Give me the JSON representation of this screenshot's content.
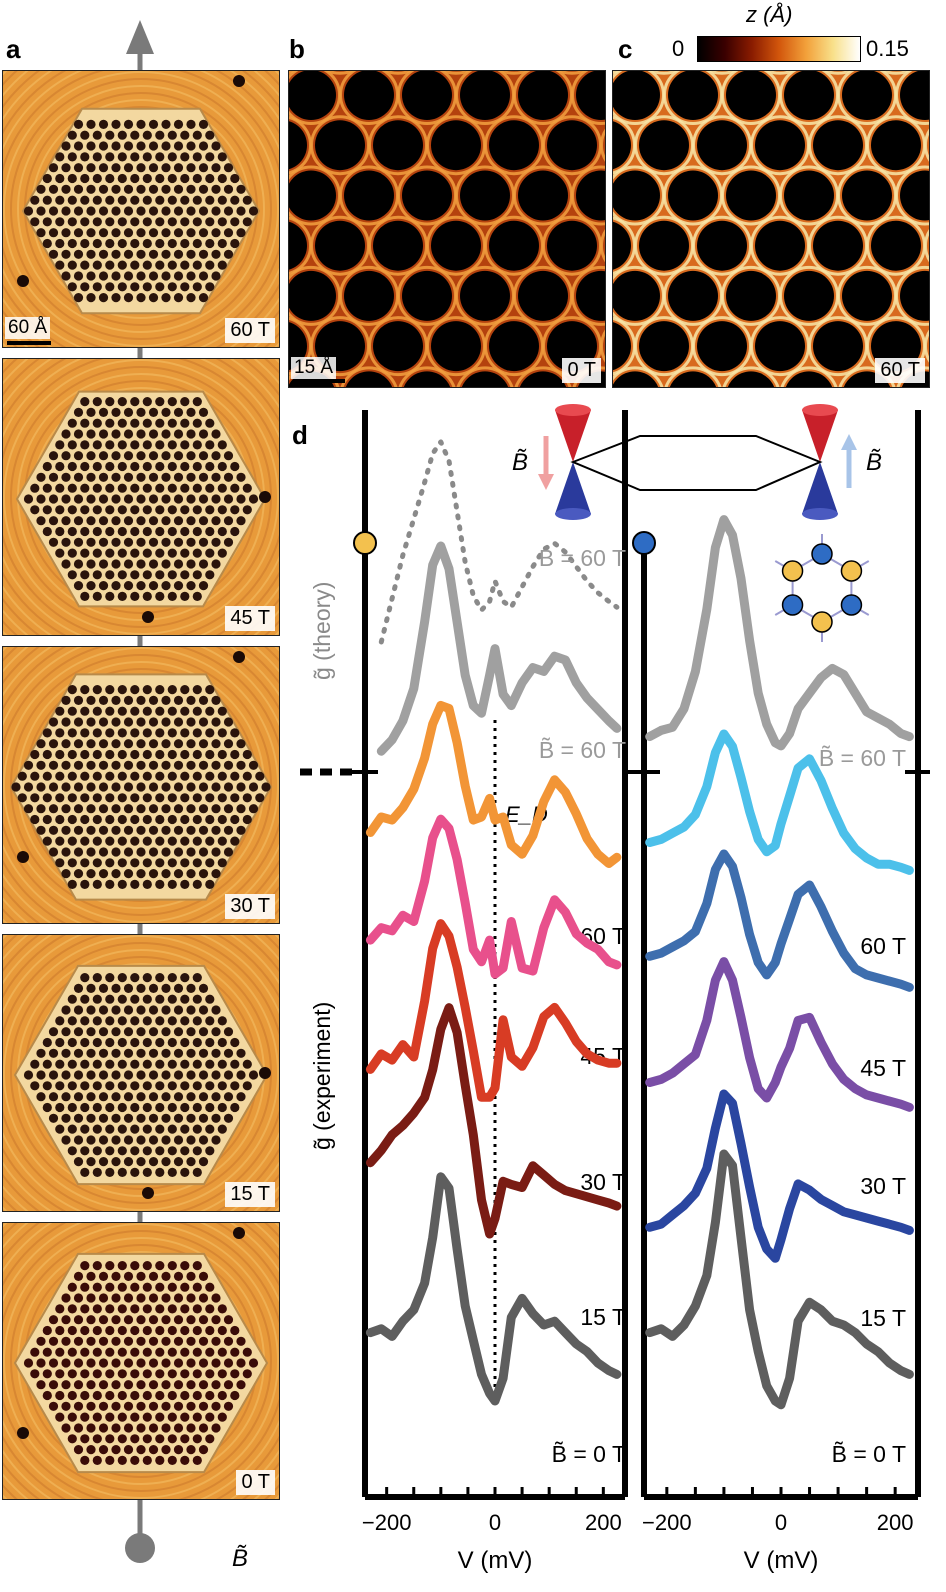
{
  "panels": {
    "a": {
      "letter": "a",
      "scalebar": "60 Å",
      "frames": [
        "60 T",
        "45 T",
        "30 T",
        "15 T",
        "0 T"
      ],
      "axis_label": "B̃"
    },
    "b": {
      "letter": "b",
      "scalebar": "15 Å",
      "tag": "0 T"
    },
    "c": {
      "letter": "c",
      "tag": "60 T"
    },
    "d": {
      "letter": "d"
    }
  },
  "colorbar": {
    "title": "z (Å)",
    "min_label": "0",
    "max_label": "0.15",
    "colors": [
      "#000000",
      "#3a0000",
      "#8a1c00",
      "#d2560c",
      "#f2a03a",
      "#f8e08a",
      "#ffffff"
    ]
  },
  "schematic": {
    "left_label": "B̃",
    "right_label": "B̃"
  },
  "chart_data": [
    {
      "type": "line",
      "panel": "d-left",
      "xlabel": "V (mV)",
      "ylabel_theory": "g̃ (theory)",
      "ylabel_experiment": "g̃ (experiment)",
      "xlim": [
        -240,
        240
      ],
      "xticks": [
        -200,
        0,
        200
      ],
      "xtick_labels": [
        "−200",
        "0",
        "200"
      ],
      "dirac_label": "E_D",
      "series": [
        {
          "name": "B = 60 T",
          "color": "#8a8a8a",
          "dashed": true,
          "x": [
            -210,
            -190,
            -170,
            -150,
            -130,
            -115,
            -100,
            -85,
            -70,
            -55,
            -40,
            -25,
            -10,
            0,
            15,
            30,
            50,
            70,
            90,
            110,
            130,
            150,
            170,
            190,
            210,
            225
          ],
          "y": [
            40,
            70,
            100,
            125,
            150,
            170,
            178,
            165,
            130,
            95,
            72,
            62,
            68,
            82,
            68,
            64,
            78,
            92,
            104,
            108,
            102,
            92,
            82,
            74,
            68,
            64
          ]
        },
        {
          "name": "B̃ = 60 T",
          "color": "#a0a0a0",
          "dashed": false,
          "x": [
            -210,
            -190,
            -170,
            -150,
            -130,
            -115,
            -100,
            -85,
            -70,
            -55,
            -40,
            -25,
            -10,
            0,
            15,
            30,
            50,
            70,
            90,
            110,
            130,
            150,
            170,
            190,
            210,
            225
          ],
          "y": [
            12,
            18,
            28,
            45,
            80,
            110,
            120,
            108,
            80,
            52,
            36,
            32,
            52,
            66,
            42,
            36,
            48,
            56,
            54,
            62,
            60,
            48,
            40,
            34,
            28,
            24
          ]
        },
        {
          "name": "60 T",
          "color": "#f29536",
          "dashed": false,
          "x": [
            -230,
            -210,
            -190,
            -170,
            -150,
            -130,
            -115,
            -100,
            -85,
            -70,
            -55,
            -40,
            -25,
            -10,
            0,
            15,
            30,
            50,
            70,
            90,
            110,
            130,
            150,
            170,
            190,
            210,
            225
          ],
          "y": [
            50,
            60,
            58,
            66,
            78,
            98,
            120,
            132,
            130,
            108,
            80,
            58,
            60,
            72,
            58,
            60,
            42,
            36,
            48,
            70,
            84,
            76,
            62,
            46,
            36,
            30,
            34
          ]
        },
        {
          "name": "45 T",
          "color": "#e8508c",
          "dashed": false,
          "x": [
            -230,
            -210,
            -190,
            -170,
            -150,
            -130,
            -115,
            -100,
            -85,
            -70,
            -55,
            -40,
            -25,
            -10,
            0,
            15,
            30,
            50,
            70,
            90,
            110,
            130,
            150,
            170,
            190,
            210,
            225
          ],
          "y": [
            58,
            66,
            64,
            74,
            70,
            96,
            124,
            136,
            130,
            110,
            82,
            52,
            44,
            58,
            36,
            40,
            70,
            40,
            38,
            66,
            84,
            76,
            62,
            56,
            52,
            44,
            42
          ]
        },
        {
          "name": "30 T",
          "color": "#d83c24",
          "dashed": false,
          "x": [
            -230,
            -210,
            -190,
            -170,
            -150,
            -130,
            -115,
            -100,
            -85,
            -70,
            -55,
            -40,
            -25,
            -10,
            0,
            15,
            30,
            50,
            70,
            90,
            110,
            130,
            150,
            170,
            190,
            210,
            225
          ],
          "y": [
            52,
            62,
            58,
            68,
            60,
            96,
            130,
            146,
            138,
            118,
            92,
            64,
            34,
            34,
            40,
            84,
            60,
            54,
            66,
            86,
            92,
            82,
            70,
            62,
            58,
            56,
            56
          ]
        },
        {
          "name": "15 T",
          "color": "#7a1c14",
          "dashed": false,
          "x": [
            -230,
            -210,
            -190,
            -170,
            -150,
            -130,
            -115,
            -100,
            -85,
            -70,
            -55,
            -40,
            -25,
            -10,
            0,
            15,
            30,
            50,
            70,
            90,
            110,
            130,
            150,
            170,
            190,
            210,
            225
          ],
          "y": [
            66,
            74,
            84,
            90,
            98,
            108,
            126,
            152,
            166,
            150,
            116,
            84,
            42,
            20,
            30,
            54,
            52,
            50,
            64,
            58,
            52,
            48,
            46,
            44,
            42,
            40,
            38
          ]
        },
        {
          "name": "B̃ = 0 T",
          "color": "#5e5e5e",
          "dashed": false,
          "x": [
            -230,
            -210,
            -190,
            -170,
            -150,
            -130,
            -115,
            -100,
            -85,
            -70,
            -55,
            -40,
            -25,
            -10,
            0,
            15,
            30,
            50,
            70,
            90,
            110,
            130,
            150,
            170,
            190,
            210,
            225
          ],
          "y": [
            46,
            48,
            44,
            52,
            58,
            72,
            96,
            128,
            122,
            90,
            60,
            42,
            24,
            14,
            10,
            22,
            54,
            64,
            56,
            50,
            52,
            46,
            40,
            36,
            30,
            26,
            24
          ]
        }
      ],
      "series_labels": [
        "B = 60 T",
        "B̃ = 60 T",
        "60 T",
        "45 T",
        "30 T",
        "15 T",
        "B̃ = 0 T"
      ]
    },
    {
      "type": "line",
      "panel": "d-right",
      "xlabel": "V (mV)",
      "xlim": [
        -240,
        240
      ],
      "xticks": [
        -200,
        0,
        200
      ],
      "xtick_labels": [
        "−200",
        "0",
        "200"
      ],
      "series": [
        {
          "name": "B̃ = 60 T",
          "color": "#a0a0a0",
          "dashed": false,
          "x": [
            -230,
            -210,
            -190,
            -170,
            -150,
            -130,
            -115,
            -100,
            -85,
            -70,
            -55,
            -40,
            -25,
            -10,
            0,
            15,
            30,
            50,
            70,
            90,
            110,
            130,
            150,
            170,
            190,
            210,
            225
          ],
          "y": [
            28,
            32,
            34,
            46,
            70,
            110,
            150,
            168,
            158,
            130,
            90,
            56,
            36,
            24,
            22,
            30,
            46,
            56,
            66,
            72,
            68,
            56,
            44,
            40,
            36,
            30,
            28
          ]
        },
        {
          "name": "60 T",
          "color": "#4cc0ea",
          "dashed": false,
          "x": [
            -230,
            -210,
            -190,
            -170,
            -150,
            -130,
            -115,
            -100,
            -85,
            -70,
            -55,
            -40,
            -25,
            -10,
            0,
            15,
            30,
            50,
            70,
            90,
            110,
            130,
            150,
            170,
            190,
            210,
            225
          ],
          "y": [
            50,
            52,
            56,
            60,
            68,
            86,
            108,
            120,
            112,
            92,
            70,
            52,
            44,
            48,
            62,
            80,
            98,
            104,
            90,
            72,
            56,
            46,
            40,
            36,
            36,
            34,
            32
          ]
        },
        {
          "name": "45 T",
          "color": "#3e6eae",
          "dashed": false,
          "x": [
            -230,
            -210,
            -190,
            -170,
            -150,
            -130,
            -115,
            -100,
            -85,
            -70,
            -55,
            -40,
            -25,
            -10,
            0,
            15,
            30,
            50,
            70,
            90,
            110,
            130,
            150,
            170,
            190,
            210,
            225
          ],
          "y": [
            54,
            56,
            60,
            64,
            70,
            88,
            110,
            120,
            112,
            92,
            68,
            50,
            42,
            50,
            62,
            78,
            94,
            100,
            86,
            70,
            56,
            46,
            42,
            40,
            38,
            36,
            34
          ]
        },
        {
          "name": "30 T",
          "color": "#7a4ea6",
          "dashed": false,
          "x": [
            -230,
            -210,
            -190,
            -170,
            -150,
            -130,
            -115,
            -100,
            -85,
            -70,
            -55,
            -40,
            -25,
            -10,
            0,
            15,
            30,
            50,
            70,
            90,
            110,
            130,
            150,
            170,
            190,
            210,
            225
          ],
          "y": [
            50,
            52,
            56,
            62,
            68,
            90,
            116,
            128,
            116,
            92,
            66,
            46,
            40,
            50,
            60,
            72,
            90,
            92,
            76,
            62,
            52,
            46,
            42,
            40,
            38,
            36,
            34
          ]
        },
        {
          "name": "15 T",
          "color": "#2a46a0",
          "dashed": false,
          "x": [
            -230,
            -210,
            -190,
            -170,
            -150,
            -130,
            -115,
            -100,
            -85,
            -70,
            -55,
            -40,
            -25,
            -10,
            0,
            15,
            30,
            50,
            70,
            90,
            110,
            130,
            150,
            170,
            190,
            210,
            225
          ],
          "y": [
            34,
            36,
            42,
            48,
            56,
            72,
            98,
            120,
            114,
            88,
            60,
            34,
            20,
            14,
            26,
            46,
            62,
            58,
            52,
            48,
            44,
            42,
            40,
            38,
            36,
            34,
            32
          ]
        },
        {
          "name": "B̃ = 0 T",
          "color": "#5e5e5e",
          "dashed": false,
          "x": [
            -230,
            -210,
            -190,
            -170,
            -150,
            -130,
            -115,
            -100,
            -85,
            -70,
            -55,
            -40,
            -25,
            -10,
            0,
            15,
            30,
            50,
            70,
            90,
            110,
            130,
            150,
            170,
            190,
            210,
            225
          ],
          "y": [
            46,
            48,
            44,
            50,
            60,
            76,
            104,
            140,
            134,
            96,
            58,
            36,
            18,
            10,
            8,
            22,
            52,
            62,
            58,
            52,
            50,
            46,
            40,
            36,
            30,
            26,
            24
          ]
        }
      ],
      "series_labels": [
        "B̃ = 60 T",
        "60 T",
        "45 T",
        "30 T",
        "15 T",
        "B̃ = 0 T"
      ]
    }
  ]
}
